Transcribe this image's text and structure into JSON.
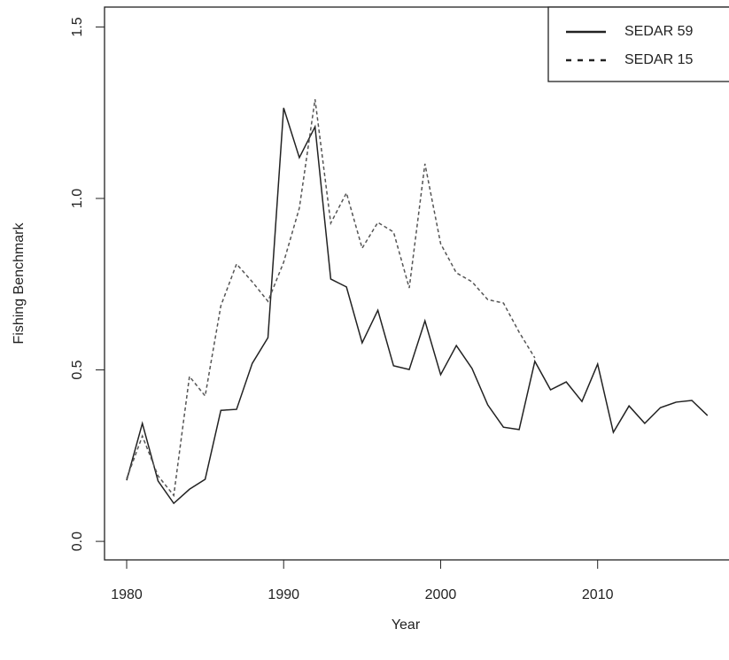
{
  "chart_data": {
    "type": "line",
    "x_label": "Year",
    "y_label": "Fishing Benchmark",
    "x": [
      1980,
      1981,
      1982,
      1983,
      1984,
      1985,
      1986,
      1987,
      1988,
      1989,
      1990,
      1991,
      1992,
      1993,
      1994,
      1995,
      1996,
      1997,
      1998,
      1999,
      2000,
      2001,
      2002,
      2003,
      2004,
      2005,
      2006,
      2007,
      2008,
      2009,
      2010,
      2011,
      2012,
      2013,
      2014,
      2015,
      2016,
      2017
    ],
    "series": [
      {
        "name": "SEDAR 59",
        "color": "#222222",
        "dash": "solid",
        "values": [
          0.178,
          0.344,
          0.176,
          0.111,
          0.152,
          0.181,
          0.382,
          0.385,
          0.519,
          0.594,
          1.264,
          1.119,
          1.209,
          0.765,
          0.742,
          0.579,
          0.674,
          0.512,
          0.501,
          0.643,
          0.486,
          0.571,
          0.504,
          0.398,
          0.333,
          0.326,
          0.525,
          0.442,
          0.465,
          0.408,
          0.517,
          0.318,
          0.395,
          0.344,
          0.39,
          0.406,
          0.411,
          0.367
        ]
      },
      {
        "name": "SEDAR 15",
        "color": "#555555",
        "dash": "dashed",
        "values": [
          0.183,
          0.307,
          0.191,
          0.134,
          0.481,
          0.424,
          0.687,
          0.809,
          0.757,
          0.7,
          0.814,
          0.972,
          1.289,
          0.928,
          1.016,
          0.855,
          0.93,
          0.902,
          0.739,
          1.101,
          0.868,
          0.783,
          0.757,
          0.705,
          0.695,
          0.61,
          0.535,
          null,
          null,
          null,
          null,
          null,
          null,
          null,
          null,
          null,
          null,
          null
        ]
      }
    ],
    "xlim": [
      1978.59,
      2018.48
    ],
    "ylim": [
      -0.054,
      1.558
    ],
    "xticks": [
      1980,
      1990,
      2000,
      2010
    ],
    "yticks": [
      {
        "value": 0,
        "label": "0.0"
      },
      {
        "value": 0.5,
        "label": "0.5"
      },
      {
        "value": 1,
        "label": "1.0"
      },
      {
        "value": 1.5,
        "label": "1.5"
      }
    ],
    "legend": "topright"
  }
}
